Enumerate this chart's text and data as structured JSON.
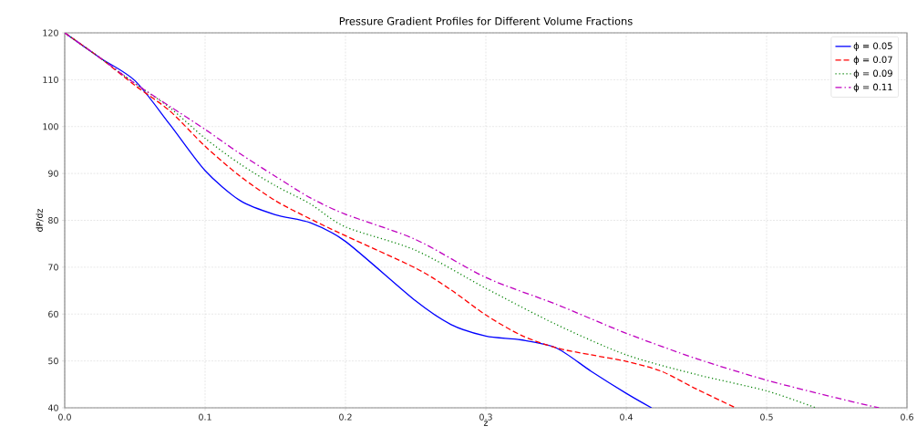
{
  "chart_data": {
    "type": "line",
    "title": "Pressure Gradient Profiles for Different Volume Fractions",
    "xlabel": "z",
    "ylabel": "dP/dz",
    "xlim": [
      0,
      0.6
    ],
    "ylim": [
      40,
      120
    ],
    "xticks": [
      {
        "value": 0,
        "label": "0.0"
      },
      0.1,
      0.2,
      0.3,
      0.4,
      0.5,
      0.6
    ],
    "yticks": [
      40,
      50,
      60,
      70,
      80,
      90,
      100,
      110,
      120
    ],
    "grid": true,
    "legend": "top right",
    "series": [
      {
        "name": "ϕ = 0.05",
        "color": "#0000ff",
        "line_style": "solid",
        "x": [
          0,
          0.025,
          0.05,
          0.075,
          0.1,
          0.125,
          0.15,
          0.175,
          0.2,
          0.25,
          0.275,
          0.3,
          0.325,
          0.35,
          0.375,
          0.4,
          0.418
        ],
        "values": [
          120,
          114.7,
          109.8,
          100.4,
          90.6,
          84.2,
          81.2,
          79.5,
          75.5,
          62.8,
          57.8,
          55.3,
          54.5,
          52.8,
          47.8,
          43.1,
          40
        ]
      },
      {
        "name": "ϕ = 0.07",
        "color": "#ff0000",
        "line_style": "dashed",
        "x": [
          0,
          0.025,
          0.05,
          0.075,
          0.1,
          0.125,
          0.15,
          0.175,
          0.2,
          0.25,
          0.275,
          0.3,
          0.325,
          0.35,
          0.375,
          0.4,
          0.425,
          0.45,
          0.478
        ],
        "values": [
          120,
          114.7,
          108.8,
          103.3,
          95.8,
          89.4,
          84.2,
          80.3,
          76.7,
          69.8,
          65.2,
          59.8,
          55.5,
          52.8,
          51.3,
          49.9,
          47.8,
          44,
          40
        ]
      },
      {
        "name": "ϕ = 0.09",
        "color": "#008000",
        "line_style": "dotted",
        "x": [
          0,
          0.025,
          0.05,
          0.075,
          0.1,
          0.125,
          0.15,
          0.175,
          0.2,
          0.25,
          0.3,
          0.35,
          0.4,
          0.45,
          0.5,
          0.535
        ],
        "values": [
          120,
          114.7,
          109.2,
          104,
          97.5,
          92,
          87.4,
          83.5,
          78.6,
          73.6,
          65.5,
          57.8,
          51.3,
          47.1,
          43.6,
          40
        ]
      },
      {
        "name": "ϕ = 0.11",
        "color": "#bf00bf",
        "line_style": "dashdot",
        "x": [
          0,
          0.025,
          0.05,
          0.075,
          0.1,
          0.125,
          0.15,
          0.175,
          0.2,
          0.25,
          0.3,
          0.35,
          0.4,
          0.45,
          0.5,
          0.55,
          0.58
        ],
        "values": [
          120,
          114.7,
          109.2,
          104.3,
          99.4,
          94.2,
          89.4,
          84.8,
          81.3,
          75.9,
          67.8,
          62.1,
          55.9,
          50.5,
          45.9,
          42.1,
          40
        ]
      }
    ]
  }
}
